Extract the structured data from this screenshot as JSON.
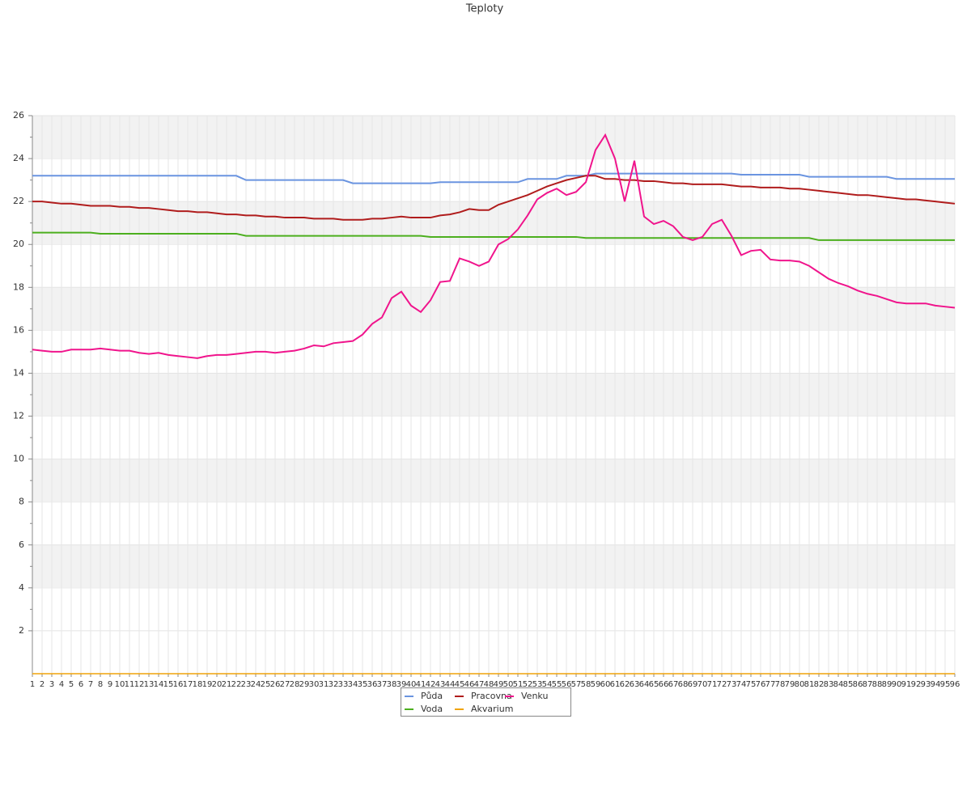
{
  "chart_data": {
    "type": "line",
    "title": "Teploty",
    "categories": [
      "1",
      "2",
      "3",
      "4",
      "5",
      "6",
      "7",
      "8",
      "9",
      "10",
      "11",
      "12",
      "13",
      "14",
      "15",
      "16",
      "17",
      "18",
      "19",
      "20",
      "21",
      "22",
      "23",
      "24",
      "25",
      "26",
      "27",
      "28",
      "29",
      "30",
      "31",
      "32",
      "33",
      "34",
      "35",
      "36",
      "37",
      "38",
      "39",
      "40",
      "41",
      "42",
      "43",
      "44",
      "45",
      "46",
      "47",
      "48",
      "49",
      "50",
      "51",
      "52",
      "53",
      "54",
      "55",
      "56",
      "57",
      "58",
      "59",
      "60",
      "61",
      "62",
      "63",
      "64",
      "65",
      "66",
      "67",
      "68",
      "69",
      "70",
      "71",
      "72",
      "73",
      "74",
      "75",
      "76",
      "77",
      "78",
      "79",
      "80",
      "81",
      "82",
      "83",
      "84",
      "85",
      "86",
      "87",
      "88",
      "89",
      "90",
      "91",
      "92",
      "93",
      "94",
      "95",
      "96"
    ],
    "ylim": [
      0,
      26
    ],
    "yticks": [
      2,
      4,
      6,
      8,
      10,
      12,
      14,
      16,
      18,
      20,
      22,
      24,
      26
    ],
    "grid": true,
    "legend": "bottom",
    "series": [
      {
        "name": "Půda",
        "color": "#6a94e0",
        "values": [
          23.2,
          23.2,
          23.2,
          23.2,
          23.2,
          23.2,
          23.2,
          23.2,
          23.2,
          23.2,
          23.2,
          23.2,
          23.2,
          23.2,
          23.2,
          23.2,
          23.2,
          23.2,
          23.2,
          23.2,
          23.2,
          23.2,
          23.0,
          23.0,
          23.0,
          23.0,
          23.0,
          23.0,
          23.0,
          23.0,
          23.0,
          23.0,
          23.0,
          22.85,
          22.85,
          22.85,
          22.85,
          22.85,
          22.85,
          22.85,
          22.85,
          22.85,
          22.9,
          22.9,
          22.9,
          22.9,
          22.9,
          22.9,
          22.9,
          22.9,
          22.9,
          23.05,
          23.05,
          23.05,
          23.05,
          23.2,
          23.2,
          23.2,
          23.3,
          23.3,
          23.3,
          23.3,
          23.3,
          23.3,
          23.3,
          23.3,
          23.3,
          23.3,
          23.3,
          23.3,
          23.3,
          23.3,
          23.3,
          23.25,
          23.25,
          23.25,
          23.25,
          23.25,
          23.25,
          23.25,
          23.15,
          23.15,
          23.15,
          23.15,
          23.15,
          23.15,
          23.15,
          23.15,
          23.15,
          23.05,
          23.05,
          23.05,
          23.05,
          23.05,
          23.05,
          23.05
        ]
      },
      {
        "name": "Voda",
        "color": "#4caf1e",
        "values": [
          20.55,
          20.55,
          20.55,
          20.55,
          20.55,
          20.55,
          20.55,
          20.5,
          20.5,
          20.5,
          20.5,
          20.5,
          20.5,
          20.5,
          20.5,
          20.5,
          20.5,
          20.5,
          20.5,
          20.5,
          20.5,
          20.5,
          20.4,
          20.4,
          20.4,
          20.4,
          20.4,
          20.4,
          20.4,
          20.4,
          20.4,
          20.4,
          20.4,
          20.4,
          20.4,
          20.4,
          20.4,
          20.4,
          20.4,
          20.4,
          20.4,
          20.35,
          20.35,
          20.35,
          20.35,
          20.35,
          20.35,
          20.35,
          20.35,
          20.35,
          20.35,
          20.35,
          20.35,
          20.35,
          20.35,
          20.35,
          20.35,
          20.3,
          20.3,
          20.3,
          20.3,
          20.3,
          20.3,
          20.3,
          20.3,
          20.3,
          20.3,
          20.3,
          20.3,
          20.3,
          20.3,
          20.3,
          20.3,
          20.3,
          20.3,
          20.3,
          20.3,
          20.3,
          20.3,
          20.3,
          20.3,
          20.2,
          20.2,
          20.2,
          20.2,
          20.2,
          20.2,
          20.2,
          20.2,
          20.2,
          20.2,
          20.2,
          20.2,
          20.2,
          20.2,
          20.2
        ]
      },
      {
        "name": "Pracovna",
        "color": "#b01c1c",
        "values": [
          22.0,
          22.0,
          21.95,
          21.9,
          21.9,
          21.85,
          21.8,
          21.8,
          21.8,
          21.75,
          21.75,
          21.7,
          21.7,
          21.65,
          21.6,
          21.55,
          21.55,
          21.5,
          21.5,
          21.45,
          21.4,
          21.4,
          21.35,
          21.35,
          21.3,
          21.3,
          21.25,
          21.25,
          21.25,
          21.2,
          21.2,
          21.2,
          21.15,
          21.15,
          21.15,
          21.2,
          21.2,
          21.25,
          21.3,
          21.25,
          21.25,
          21.25,
          21.35,
          21.4,
          21.5,
          21.65,
          21.6,
          21.6,
          21.85,
          22.0,
          22.15,
          22.3,
          22.5,
          22.7,
          22.85,
          23.0,
          23.1,
          23.2,
          23.2,
          23.05,
          23.05,
          23.0,
          23.0,
          22.95,
          22.95,
          22.9,
          22.85,
          22.85,
          22.8,
          22.8,
          22.8,
          22.8,
          22.75,
          22.7,
          22.7,
          22.65,
          22.65,
          22.65,
          22.6,
          22.6,
          22.55,
          22.5,
          22.45,
          22.4,
          22.35,
          22.3,
          22.3,
          22.25,
          22.2,
          22.15,
          22.1,
          22.1,
          22.05,
          22.0,
          21.95,
          21.9
        ]
      },
      {
        "name": "Akvarium",
        "color": "#f0a30a",
        "values": [
          0,
          0,
          0,
          0,
          0,
          0,
          0,
          0,
          0,
          0,
          0,
          0,
          0,
          0,
          0,
          0,
          0,
          0,
          0,
          0,
          0,
          0,
          0,
          0,
          0,
          0,
          0,
          0,
          0,
          0,
          0,
          0,
          0,
          0,
          0,
          0,
          0,
          0,
          0,
          0,
          0,
          0,
          0,
          0,
          0,
          0,
          0,
          0,
          0,
          0,
          0,
          0,
          0,
          0,
          0,
          0,
          0,
          0,
          0,
          0,
          0,
          0,
          0,
          0,
          0,
          0,
          0,
          0,
          0,
          0,
          0,
          0,
          0,
          0,
          0,
          0,
          0,
          0,
          0,
          0,
          0,
          0,
          0,
          0,
          0,
          0,
          0,
          0,
          0,
          0,
          0,
          0,
          0,
          0,
          0,
          0
        ]
      },
      {
        "name": "Venku",
        "color": "#f0148c",
        "values": [
          15.1,
          15.05,
          15.0,
          15.0,
          15.1,
          15.1,
          15.1,
          15.15,
          15.1,
          15.05,
          15.05,
          14.95,
          14.9,
          14.95,
          14.85,
          14.8,
          14.75,
          14.7,
          14.8,
          14.85,
          14.85,
          14.9,
          14.95,
          15.0,
          15.0,
          14.95,
          15.0,
          15.05,
          15.15,
          15.3,
          15.25,
          15.4,
          15.45,
          15.5,
          15.8,
          16.3,
          16.6,
          17.5,
          17.8,
          17.15,
          16.85,
          17.4,
          18.25,
          18.3,
          19.35,
          19.2,
          19.0,
          19.2,
          20.0,
          20.25,
          20.7,
          21.35,
          22.1,
          22.4,
          22.6,
          22.3,
          22.45,
          22.9,
          24.4,
          25.1,
          24.0,
          22.0,
          23.9,
          21.3,
          20.95,
          21.1,
          20.85,
          20.35,
          20.2,
          20.35,
          20.95,
          21.15,
          20.4,
          19.5,
          19.7,
          19.75,
          19.3,
          19.25,
          19.25,
          19.2,
          19.0,
          18.7,
          18.4,
          18.2,
          18.05,
          17.85,
          17.7,
          17.6,
          17.45,
          17.3,
          17.25,
          17.25,
          17.25,
          17.15,
          17.1,
          17.05
        ]
      }
    ]
  }
}
